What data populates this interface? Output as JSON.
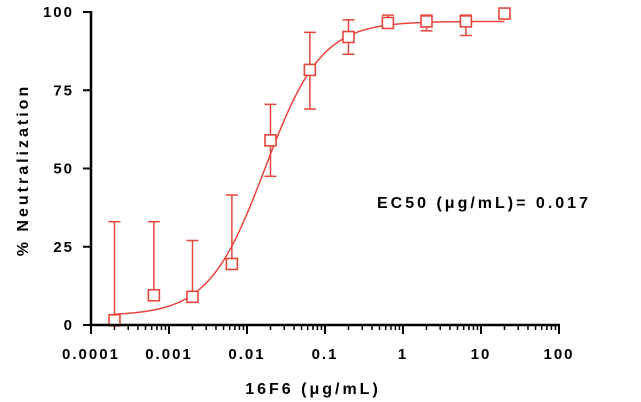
{
  "chart_data": {
    "type": "scatter",
    "xlabel": "16F6 (μg/mL)",
    "ylabel": "% Neutralization",
    "x_scale": "log",
    "xlim": [
      0.0001,
      100
    ],
    "ylim": [
      0,
      100
    ],
    "x_ticks": [
      "0.0001",
      "0.001",
      "0.01",
      "0.1",
      "1",
      "10",
      "100"
    ],
    "y_ticks": [
      "0",
      "25",
      "50",
      "75",
      "100"
    ],
    "annotation": "EC50 (μg/mL)= 0.017",
    "color": "#e8453c",
    "marker": "open-square",
    "grid": false,
    "series": [
      {
        "x": [
          0.0002,
          0.00064,
          0.002,
          0.0064,
          0.02,
          0.064,
          0.2,
          0.64,
          2,
          6.4,
          20
        ],
        "y": [
          1.5,
          9.5,
          9,
          19.5,
          59,
          81.5,
          92,
          96.5,
          97,
          97,
          99.5
        ],
        "error_low": [
          0,
          9.5,
          9,
          19.5,
          47.5,
          69,
          86.5,
          95,
          94,
          92.5,
          99.5
        ],
        "error_high": [
          33,
          33,
          27,
          41.5,
          70.5,
          93.5,
          97.5,
          99,
          99,
          99,
          99.5
        ]
      }
    ],
    "fit_curve": {
      "bottom": 3,
      "top": 97,
      "ec50": 0.017,
      "hill": 1.2
    }
  }
}
